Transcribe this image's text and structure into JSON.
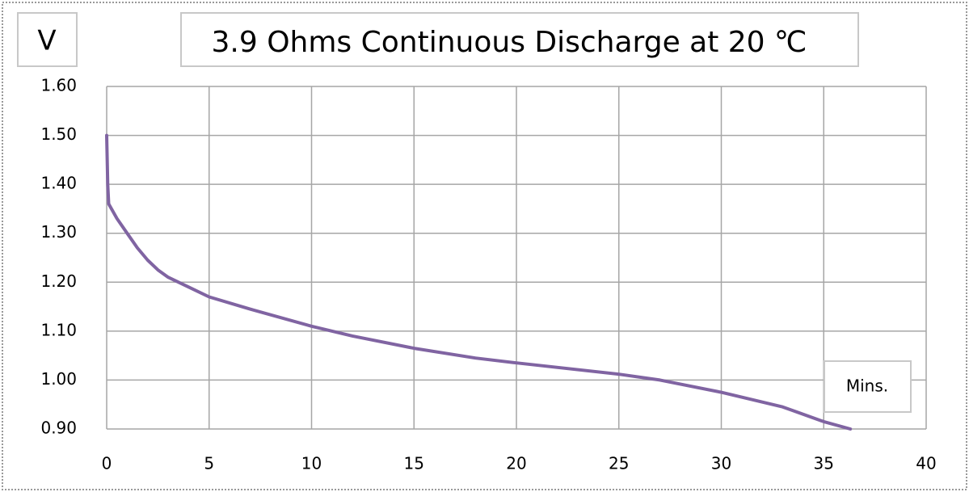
{
  "chart_data": {
    "type": "line",
    "title": "3.9 Ohms Continuous Discharge at 20 ℃",
    "y_label": "V",
    "x_label": "Mins.",
    "color": "#8064a2",
    "x": [
      0,
      0.05,
      0.1,
      0.5,
      1,
      1.5,
      2,
      2.5,
      3,
      4,
      5,
      7,
      10,
      12,
      15,
      18,
      20,
      25,
      27,
      30,
      33,
      35,
      36.3
    ],
    "values": [
      1.5,
      1.4,
      1.36,
      1.33,
      1.3,
      1.27,
      1.245,
      1.225,
      1.21,
      1.19,
      1.17,
      1.145,
      1.11,
      1.09,
      1.065,
      1.045,
      1.035,
      1.012,
      1.0,
      0.975,
      0.945,
      0.915,
      0.9
    ],
    "xlim": [
      0,
      40
    ],
    "xticks": [
      0,
      5,
      10,
      15,
      20,
      25,
      30,
      35,
      40
    ],
    "ylim": [
      0.9,
      1.6
    ],
    "yticks": [
      {
        "value": 0.9,
        "label": "0.90"
      },
      {
        "value": 1.0,
        "label": "1.00"
      },
      {
        "value": 1.1,
        "label": "1.10"
      },
      {
        "value": 1.2,
        "label": "1.20"
      },
      {
        "value": 1.3,
        "label": "1.30"
      },
      {
        "value": 1.4,
        "label": "1.40"
      },
      {
        "value": 1.5,
        "label": "1.50"
      },
      {
        "value": 1.6,
        "label": "1.60"
      }
    ],
    "grid": true
  }
}
